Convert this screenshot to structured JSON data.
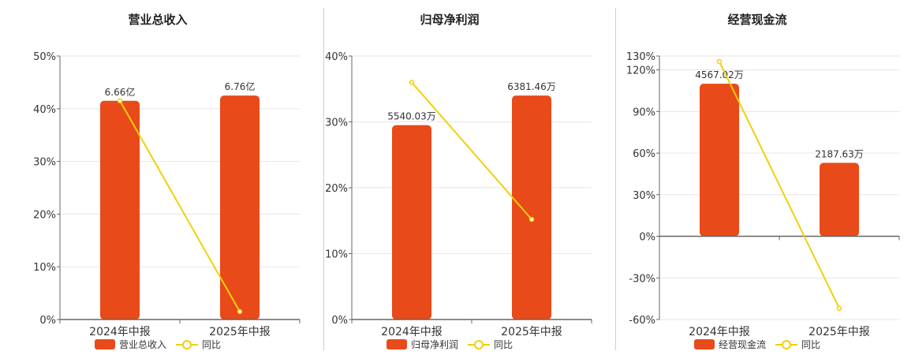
{
  "colors": {
    "bar": "#e84a1a",
    "line": "#f2cf0a",
    "grid": "#e6e6e6",
    "axis": "#666666"
  },
  "chart_data": [
    {
      "type": "bar",
      "title": "营业总收入",
      "categories": [
        "2024年中报",
        "2025年中报"
      ],
      "series": [
        {
          "name": "营业总收入",
          "values": [
            41.5,
            42.5
          ],
          "labels": [
            "6.66亿",
            "6.76亿"
          ]
        }
      ],
      "line_series": {
        "name": "同比",
        "values": [
          41.5,
          1.5
        ]
      },
      "ylim": [
        0,
        50
      ],
      "yticks": [
        0,
        10,
        20,
        30,
        40,
        50
      ],
      "yticklabels": [
        "0%",
        "10%",
        "20%",
        "30%",
        "40%",
        "50%"
      ],
      "grid": true,
      "legend_position": "bottom"
    },
    {
      "type": "bar",
      "title": "归母净利润",
      "categories": [
        "2024年中报",
        "2025年中报"
      ],
      "series": [
        {
          "name": "归母净利润",
          "values": [
            29.5,
            34
          ],
          "labels": [
            "5540.03万",
            "6381.46万"
          ]
        }
      ],
      "line_series": {
        "name": "同比",
        "values": [
          36,
          15.2
        ]
      },
      "ylim": [
        0,
        40
      ],
      "yticks": [
        0,
        10,
        20,
        30,
        40
      ],
      "yticklabels": [
        "0%",
        "10%",
        "20%",
        "30%",
        "40%"
      ],
      "grid": true,
      "legend_position": "bottom"
    },
    {
      "type": "bar",
      "title": "经营现金流",
      "categories": [
        "2024年中报",
        "2025年中报"
      ],
      "series": [
        {
          "name": "经营现金流",
          "values": [
            110,
            53
          ],
          "labels": [
            "4567.02万",
            "2187.63万"
          ]
        }
      ],
      "line_series": {
        "name": "同比",
        "values": [
          126,
          -52
        ]
      },
      "ylim": [
        -60,
        130
      ],
      "yticks": [
        -60,
        -30,
        0,
        30,
        60,
        90,
        120,
        130
      ],
      "yticklabels": [
        "-60%",
        "-30%",
        "0%",
        "30%",
        "60%",
        "90%",
        "120%",
        "130%"
      ],
      "grid": true,
      "legend_position": "bottom"
    }
  ]
}
